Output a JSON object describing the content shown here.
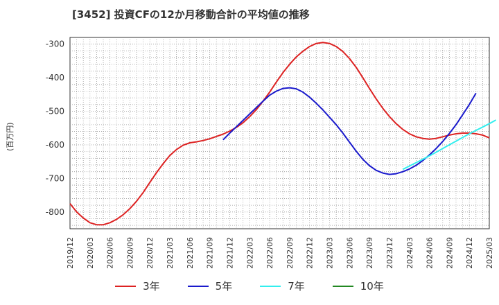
{
  "title": "[3452]  投資CFの12か月移動合計の平均値の推移",
  "chart_data": {
    "type": "line",
    "ylabel": "(百万円)",
    "ylim": [
      -850,
      -280
    ],
    "yticks": [
      -300,
      -400,
      -500,
      -600,
      -700,
      -800
    ],
    "ytick_labels": [
      "-300",
      "-400",
      "-500",
      "-600",
      "-700",
      "-800"
    ],
    "x_tick_labels": [
      "2019/12",
      "2020/03",
      "2020/06",
      "2020/09",
      "2020/12",
      "2021/03",
      "2021/06",
      "2021/09",
      "2021/12",
      "2022/03",
      "2022/06",
      "2022/09",
      "2022/12",
      "2023/03",
      "2023/06",
      "2023/09",
      "2023/12",
      "2024/03",
      "2024/06",
      "2024/09",
      "2024/12",
      "2025/03"
    ],
    "grid": true,
    "legend_position": "bottom",
    "series": [
      {
        "name": "3年",
        "color": "#dd2222",
        "start_index": 0,
        "values": [
          -775,
          -800,
          -818,
          -832,
          -838,
          -838,
          -832,
          -822,
          -808,
          -790,
          -768,
          -742,
          -712,
          -683,
          -656,
          -632,
          -614,
          -601,
          -594,
          -591,
          -587,
          -582,
          -575,
          -568,
          -559,
          -548,
          -534,
          -516,
          -495,
          -470,
          -443,
          -413,
          -385,
          -360,
          -338,
          -321,
          -307,
          -298,
          -295,
          -298,
          -307,
          -322,
          -343,
          -369,
          -400,
          -432,
          -463,
          -491,
          -516,
          -537,
          -554,
          -567,
          -576,
          -581,
          -583,
          -581,
          -576,
          -571,
          -567,
          -565,
          -565,
          -567,
          -571,
          -579
        ]
      },
      {
        "name": "5年",
        "color": "#1a1acc",
        "start_index": 23,
        "values": [
          -585,
          -565,
          -546,
          -527,
          -508,
          -489,
          -470,
          -452,
          -440,
          -432,
          -430,
          -433,
          -443,
          -458,
          -476,
          -496,
          -518,
          -540,
          -565,
          -592,
          -619,
          -643,
          -662,
          -676,
          -684,
          -688,
          -686,
          -680,
          -672,
          -661,
          -647,
          -630,
          -611,
          -590,
          -566,
          -540,
          -510,
          -480,
          -446
        ]
      },
      {
        "name": "7年",
        "color": "#33eeee",
        "start_index": 50,
        "values": [
          -673,
          -663,
          -653,
          -643,
          -633,
          -622,
          -611,
          -600,
          -589,
          -578,
          -567,
          -557,
          -547,
          -537,
          -526
        ]
      },
      {
        "name": "10年",
        "color": "#228822",
        "start_index": 0,
        "values": []
      }
    ]
  }
}
